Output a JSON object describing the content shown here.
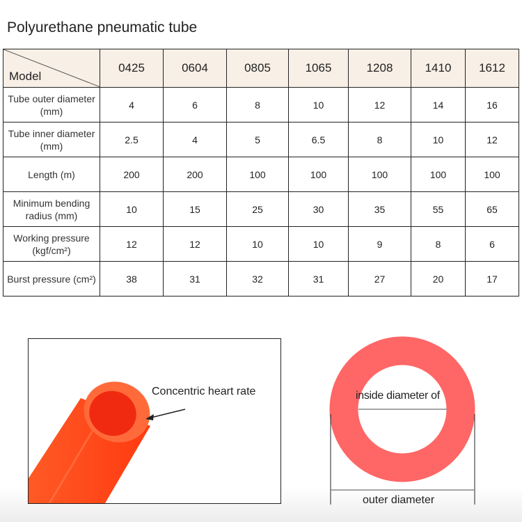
{
  "title": "Polyurethane pneumatic tube",
  "table": {
    "corner": "Model",
    "models": [
      "0425",
      "0604",
      "0805",
      "1065",
      "1208",
      "1410",
      "1612"
    ],
    "rows": [
      {
        "label": "Tube outer diameter (mm)",
        "values": [
          "4",
          "6",
          "8",
          "10",
          "12",
          "14",
          "16"
        ]
      },
      {
        "label": "Tube inner diameter (mm)",
        "values": [
          "2.5",
          "4",
          "5",
          "6.5",
          "8",
          "10",
          "12"
        ]
      },
      {
        "label": "Length (m)",
        "values": [
          "200",
          "200",
          "100",
          "100",
          "100",
          "100",
          "100"
        ]
      },
      {
        "label": "Minimum bending radius (mm)",
        "values": [
          "10",
          "15",
          "25",
          "30",
          "35",
          "55",
          "65"
        ]
      },
      {
        "label": "Working pressure (kgf/cm²)",
        "values": [
          "12",
          "12",
          "10",
          "10",
          "9",
          "8",
          "6"
        ]
      },
      {
        "label": "Burst pressure (cm²)",
        "values": [
          "38",
          "31",
          "32",
          "31",
          "27",
          "20",
          "17"
        ]
      }
    ]
  },
  "photo": {
    "annotation": "Concentric heart rate",
    "tube_color": "#ff4a1c"
  },
  "diagram": {
    "inner_label": "inside diameter of",
    "outer_label": "outer diameter",
    "ring_color": "#ff6666"
  }
}
